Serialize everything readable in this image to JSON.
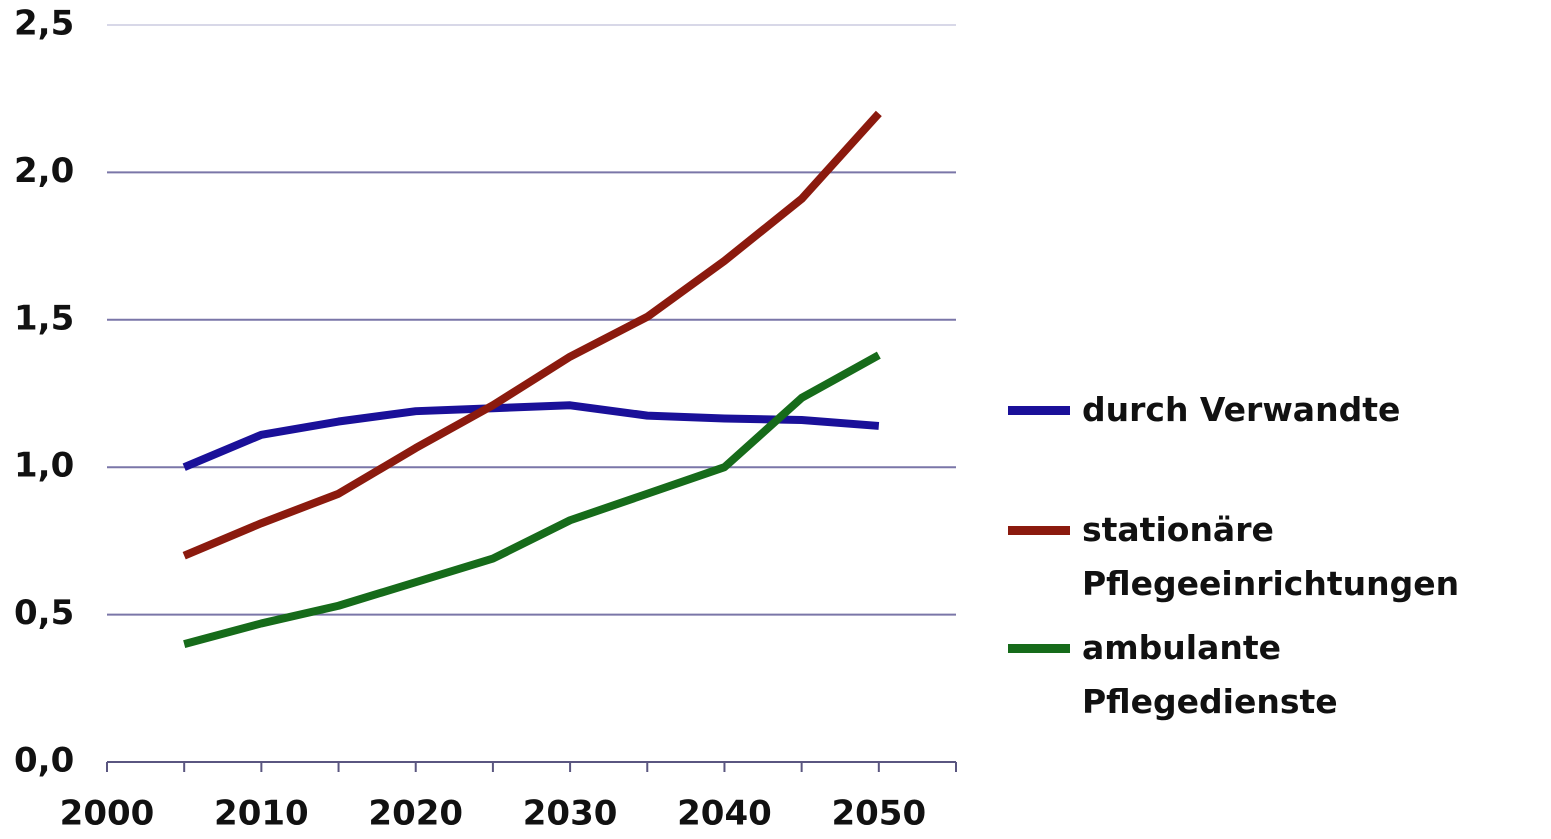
{
  "chart_data": {
    "type": "line",
    "x": [
      2005,
      2010,
      2015,
      2020,
      2025,
      2030,
      2035,
      2040,
      2045,
      2050
    ],
    "series": [
      {
        "name": "durch Verwandte",
        "color": "#1a1099",
        "values": [
          1.0,
          1.11,
          1.155,
          1.19,
          1.2,
          1.21,
          1.175,
          1.165,
          1.16,
          1.14
        ]
      },
      {
        "name": "stationäre Pflegeeinrichtungen",
        "color": "#8b1a0e",
        "values": [
          0.7,
          0.81,
          0.91,
          1.065,
          1.21,
          1.375,
          1.51,
          1.7,
          1.91,
          2.2
        ]
      },
      {
        "name": "ambulante Pflegedienste",
        "color": "#166b1a",
        "values": [
          0.4,
          0.47,
          0.53,
          0.61,
          0.69,
          0.82,
          0.91,
          1.0,
          1.235,
          1.38
        ]
      }
    ],
    "xlim": [
      2000,
      2055
    ],
    "xticks": [
      2000,
      2010,
      2020,
      2030,
      2040,
      2050
    ],
    "xticks_minor": [
      2005,
      2015,
      2025,
      2035,
      2045,
      2055
    ],
    "ylim": [
      0,
      2.5
    ],
    "yticks": [
      {
        "value": 0,
        "label": "0,0"
      },
      {
        "value": 0.5,
        "label": "0,5"
      },
      {
        "value": 1.0,
        "label": "1,0"
      },
      {
        "value": 1.5,
        "label": "1,5"
      },
      {
        "value": 2.0,
        "label": "2,0"
      },
      {
        "value": 2.5,
        "label": "2,5"
      }
    ],
    "grid": true,
    "legend": "right"
  }
}
